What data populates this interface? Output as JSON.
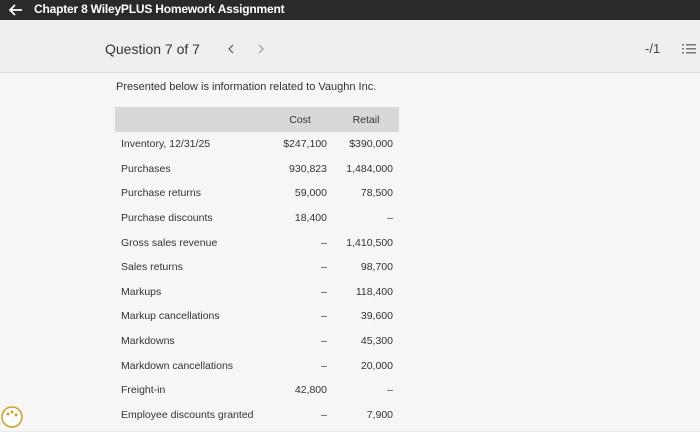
{
  "topbar": {
    "title": "Chapter 8 WileyPLUS Homework Assignment"
  },
  "header": {
    "question": "Question 7 of 7",
    "score": "-/1"
  },
  "intro": "Presented below is information related to Vaughn Inc.",
  "table": {
    "columns": [
      "",
      "Cost",
      "Retail"
    ],
    "rows": [
      [
        "Inventory, 12/31/25",
        "$247,100",
        "$390,000"
      ],
      [
        "Purchases",
        "930,823",
        "1,484,000"
      ],
      [
        "Purchase returns",
        "59,000",
        "78,500"
      ],
      [
        "Purchase discounts",
        "18,400",
        "–"
      ],
      [
        "Gross sales revenue",
        "–",
        "1,410,500"
      ],
      [
        "Sales returns",
        "–",
        "98,700"
      ],
      [
        "Markups",
        "–",
        "118,400"
      ],
      [
        "Markup cancellations",
        "–",
        "39,600"
      ],
      [
        "Markdowns",
        "–",
        "45,300"
      ],
      [
        "Markdown cancellations",
        "–",
        "20,000"
      ],
      [
        "Freight-in",
        "42,800",
        "–"
      ],
      [
        "Employee discounts granted",
        "–",
        "7,900"
      ]
    ]
  }
}
